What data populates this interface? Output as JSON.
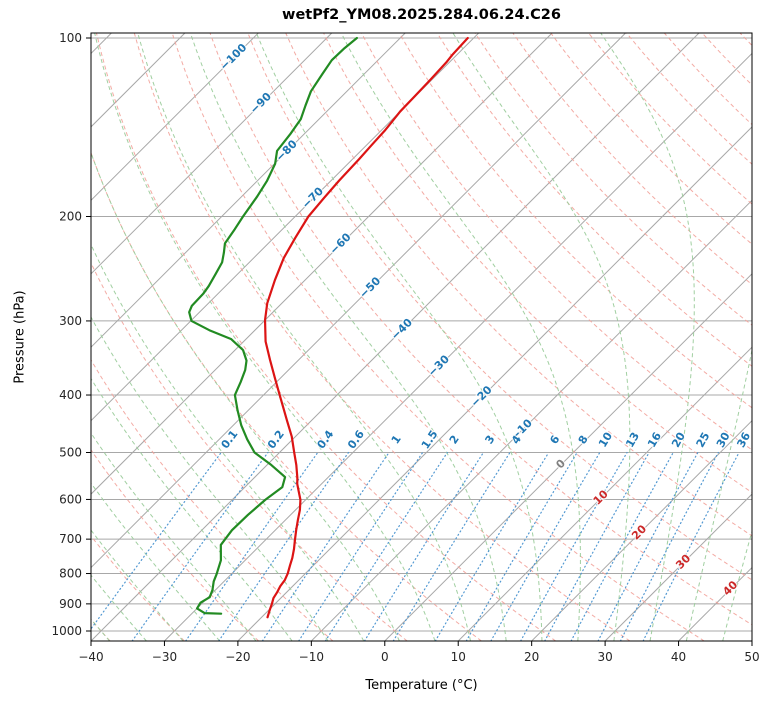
{
  "chart_data": {
    "type": "line",
    "chart_kind": "skewT-logP-sounding",
    "title": "wetPf2_YM08.2025.284.06.24.C26",
    "xlabel": "Temperature (°C)",
    "ylabel": "Pressure (hPa)",
    "xlim": [
      -40,
      50
    ],
    "pressure_lim": [
      100,
      1040
    ],
    "x_ticks": [
      -40,
      -30,
      -20,
      -10,
      0,
      10,
      20,
      30,
      40,
      50
    ],
    "pressure_ticks": [
      100,
      200,
      300,
      400,
      500,
      600,
      700,
      800,
      900,
      1000
    ],
    "skew_deg": 45,
    "grid": true,
    "isotherms": {
      "min": -120,
      "max": 50,
      "step": 10
    },
    "isotherm_labels": [
      {
        "value": -100,
        "p": 107
      },
      {
        "value": -90,
        "p": 128
      },
      {
        "value": -80,
        "p": 154
      },
      {
        "value": -70,
        "p": 185
      },
      {
        "value": -60,
        "p": 221
      },
      {
        "value": -50,
        "p": 262
      },
      {
        "value": -40,
        "p": 308
      },
      {
        "value": -30,
        "p": 355
      },
      {
        "value": -20,
        "p": 400
      },
      {
        "value": -10,
        "p": 455
      },
      {
        "value": 0,
        "p": 520
      },
      {
        "value": 10,
        "p": 592
      },
      {
        "value": 20,
        "p": 678
      },
      {
        "value": 30,
        "p": 760
      },
      {
        "value": 40,
        "p": 842
      }
    ],
    "dry_adiabats_c": {
      "min": -40,
      "max": 190,
      "step": 10
    },
    "moist_adiabats_c": {
      "min": -40,
      "max": 45,
      "step": 5
    },
    "mixing_ratios_g_kg": [
      0.1,
      0.2,
      0.4,
      0.6,
      1,
      1.5,
      2,
      3,
      4,
      6,
      8,
      10,
      13,
      16,
      20,
      25,
      30,
      36
    ],
    "mixing_ratio_label_pressure": 472,
    "mixing_ratio_line_top_pressure": 500,
    "series": [
      {
        "name": "temperature",
        "label": "Temperature",
        "color": "#dc1414",
        "points": [
          [
            948,
            -19.2
          ],
          [
            925,
            -19.8
          ],
          [
            901,
            -20.4
          ],
          [
            880,
            -21.0
          ],
          [
            860,
            -21.3
          ],
          [
            840,
            -21.7
          ],
          [
            821,
            -21.9
          ],
          [
            800,
            -22.4
          ],
          [
            775,
            -23.2
          ],
          [
            753,
            -23.9
          ],
          [
            727,
            -24.9
          ],
          [
            702,
            -26.0
          ],
          [
            675,
            -27.2
          ],
          [
            650,
            -28.3
          ],
          [
            625,
            -29.4
          ],
          [
            601,
            -30.7
          ],
          [
            580,
            -32.2
          ],
          [
            565,
            -33.3
          ],
          [
            552,
            -34.1
          ],
          [
            525,
            -36.0
          ],
          [
            500,
            -38.0
          ],
          [
            470,
            -40.5
          ],
          [
            441,
            -43.4
          ],
          [
            420,
            -45.6
          ],
          [
            400,
            -47.8
          ],
          [
            375,
            -50.7
          ],
          [
            349,
            -53.9
          ],
          [
            325,
            -57.0
          ],
          [
            299,
            -60.0
          ],
          [
            280,
            -62.0
          ],
          [
            256,
            -64.1
          ],
          [
            235,
            -65.9
          ],
          [
            217,
            -67.1
          ],
          [
            200,
            -68.2
          ],
          [
            186,
            -68.6
          ],
          [
            174,
            -68.9
          ],
          [
            160,
            -69.1
          ],
          [
            152,
            -69.3
          ],
          [
            143,
            -69.5
          ],
          [
            133,
            -70.0
          ],
          [
            125,
            -70.1
          ],
          [
            118,
            -70.2
          ],
          [
            110,
            -70.4
          ],
          [
            107,
            -70.6
          ],
          [
            100,
            -70.8
          ]
        ]
      },
      {
        "name": "dewpoint",
        "label": "Dew point",
        "color": "#228b22",
        "points": [
          [
            935,
            -26.0
          ],
          [
            933,
            -28.3
          ],
          [
            916,
            -30.0
          ],
          [
            896,
            -30.3
          ],
          [
            877,
            -29.8
          ],
          [
            853,
            -30.4
          ],
          [
            825,
            -31.4
          ],
          [
            802,
            -32.0
          ],
          [
            760,
            -33.3
          ],
          [
            716,
            -35.4
          ],
          [
            676,
            -35.9
          ],
          [
            637,
            -35.8
          ],
          [
            601,
            -35.5
          ],
          [
            572,
            -34.9
          ],
          [
            550,
            -35.9
          ],
          [
            525,
            -39.4
          ],
          [
            500,
            -43.4
          ],
          [
            475,
            -46.2
          ],
          [
            450,
            -48.9
          ],
          [
            425,
            -51.4
          ],
          [
            400,
            -53.9
          ],
          [
            380,
            -54.9
          ],
          [
            363,
            -55.9
          ],
          [
            350,
            -57.0
          ],
          [
            336,
            -58.9
          ],
          [
            322,
            -62.0
          ],
          [
            311,
            -66.2
          ],
          [
            300,
            -69.9
          ],
          [
            290,
            -71.4
          ],
          [
            283,
            -71.9
          ],
          [
            270,
            -72.0
          ],
          [
            262,
            -72.3
          ],
          [
            250,
            -73.0
          ],
          [
            239,
            -73.7
          ],
          [
            230,
            -74.8
          ],
          [
            222,
            -75.9
          ],
          [
            210,
            -76.5
          ],
          [
            200,
            -77.1
          ],
          [
            185,
            -77.9
          ],
          [
            174,
            -78.7
          ],
          [
            163,
            -79.9
          ],
          [
            155,
            -81.4
          ],
          [
            145,
            -81.9
          ],
          [
            137,
            -82.5
          ],
          [
            130,
            -83.7
          ],
          [
            123,
            -84.9
          ],
          [
            115,
            -85.7
          ],
          [
            109,
            -86.3
          ],
          [
            104,
            -86.2
          ],
          [
            100,
            -85.9
          ]
        ]
      }
    ],
    "colors": {
      "pressure_grid": "#a8a8a8",
      "isotherm_grid": "#a8a8a8",
      "dry_adiabat": "#f2a29a",
      "moist_adiabat": "#9ccc9c",
      "mixing_ratio": "#4a94d0",
      "isotherm_label_cold": "#1f77b4",
      "isotherm_label_zero": "#808080",
      "isotherm_label_warm": "#cc2929",
      "mixing_label": "#1f77b4",
      "axis_text": "#262626",
      "border": "#000000"
    }
  }
}
